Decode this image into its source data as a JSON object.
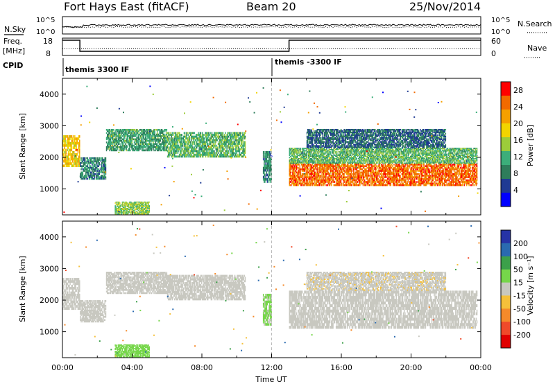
{
  "header": {
    "station": "Fort Hays East (fitACF)",
    "beam": "Beam 20",
    "date": "25/Nov/2014"
  },
  "top_panels": {
    "nsky_label": "N.Sky",
    "nsearch_label": "N.Search",
    "freq_label": "Freq.",
    "freq_unit": "[MHz]",
    "nave_label": "Nave",
    "cpid_label": "CPID",
    "cpid_segments": [
      {
        "label": "themis 3300 IF",
        "start_hour": 0
      },
      {
        "label": "themis -3300 IF",
        "start_hour": 12
      }
    ],
    "noise_left_ticks": [
      "10^5",
      "10^0"
    ],
    "noise_right_ticks": [
      "10^5",
      "10^0"
    ],
    "freq_left_ticks": [
      "18",
      "8"
    ],
    "nave_right_ticks": [
      "60",
      "0"
    ]
  },
  "colors": {
    "power_scale": [
      "#0000ff",
      "#1f3a93",
      "#2e7d5b",
      "#3cae7a",
      "#9ccc3a",
      "#f2d400",
      "#f5a000",
      "#f26a00",
      "#ff0000"
    ],
    "velocity_scale": [
      "#2633a6",
      "#2a6ab0",
      "#3ca04a",
      "#76d64a",
      "#c8c8c0",
      "#f5c03a",
      "#f58a2a",
      "#f04a2a",
      "#e00000"
    ]
  },
  "chart_data": [
    {
      "type": "heatmap",
      "name": "power",
      "xlabel": "Time UT",
      "ylabel": "Slant Range [km]",
      "x_ticks": [
        "00:00",
        "04:00",
        "08:00",
        "12:00",
        "16:00",
        "20:00",
        "00:00"
      ],
      "xlim": [
        0,
        24
      ],
      "ylim": [
        180,
        4500
      ],
      "y_ticks": [
        1000,
        2000,
        3000,
        4000
      ],
      "colorbar": {
        "label": "Power [dB]",
        "ticks": [
          4,
          8,
          12,
          16,
          20,
          24,
          28
        ],
        "range": [
          0,
          30
        ]
      },
      "bands": [
        {
          "t0": 0.0,
          "t1": 1.0,
          "r0": 1700,
          "r1": 2700,
          "level": 20
        },
        {
          "t0": 1.0,
          "t1": 2.5,
          "r0": 1300,
          "r1": 2000,
          "level": 8
        },
        {
          "t0": 2.5,
          "t1": 6.0,
          "r0": 2200,
          "r1": 2900,
          "level": 10
        },
        {
          "t0": 6.0,
          "t1": 10.5,
          "r0": 2000,
          "r1": 2800,
          "level": 12
        },
        {
          "t0": 3.0,
          "t1": 5.0,
          "r0": 200,
          "r1": 600,
          "level": 14
        },
        {
          "t0": 11.5,
          "t1": 12.0,
          "r0": 1200,
          "r1": 2200,
          "level": 8
        },
        {
          "t0": 13.0,
          "t1": 23.8,
          "r0": 1100,
          "r1": 1800,
          "level": 26
        },
        {
          "t0": 13.0,
          "t1": 23.8,
          "r0": 1800,
          "r1": 2300,
          "level": 12
        },
        {
          "t0": 14.0,
          "t1": 22.0,
          "r0": 2300,
          "r1": 2900,
          "level": 6
        }
      ]
    },
    {
      "type": "heatmap",
      "name": "velocity",
      "xlabel": "Time UT",
      "ylabel": "Slant Range [km]",
      "x_ticks": [
        "00:00",
        "04:00",
        "08:00",
        "12:00",
        "16:00",
        "20:00",
        "00:00"
      ],
      "xlim": [
        0,
        24
      ],
      "ylim": [
        180,
        4500
      ],
      "y_ticks": [
        1000,
        2000,
        3000,
        4000
      ],
      "colorbar": {
        "label": "Velocity [m s⁻¹]",
        "ticks": [
          200,
          100,
          50,
          15,
          -15,
          -50,
          -100,
          -200
        ]
      },
      "bands": [
        {
          "t0": 0.0,
          "t1": 1.0,
          "r0": 1700,
          "r1": 2700,
          "level": 0
        },
        {
          "t0": 1.0,
          "t1": 2.5,
          "r0": 1300,
          "r1": 2000,
          "level": 0
        },
        {
          "t0": 2.5,
          "t1": 6.0,
          "r0": 2200,
          "r1": 2900,
          "level": 0
        },
        {
          "t0": 6.0,
          "t1": 10.5,
          "r0": 2000,
          "r1": 2800,
          "level": 0
        },
        {
          "t0": 3.0,
          "t1": 5.0,
          "r0": 200,
          "r1": 600,
          "level": 60
        },
        {
          "t0": 11.5,
          "t1": 12.0,
          "r0": 1200,
          "r1": 2200,
          "level": 40
        },
        {
          "t0": 13.0,
          "t1": 23.8,
          "r0": 1100,
          "r1": 2300,
          "level": 0
        },
        {
          "t0": 14.0,
          "t1": 22.0,
          "r0": 2300,
          "r1": 2900,
          "level": -20
        }
      ]
    }
  ]
}
